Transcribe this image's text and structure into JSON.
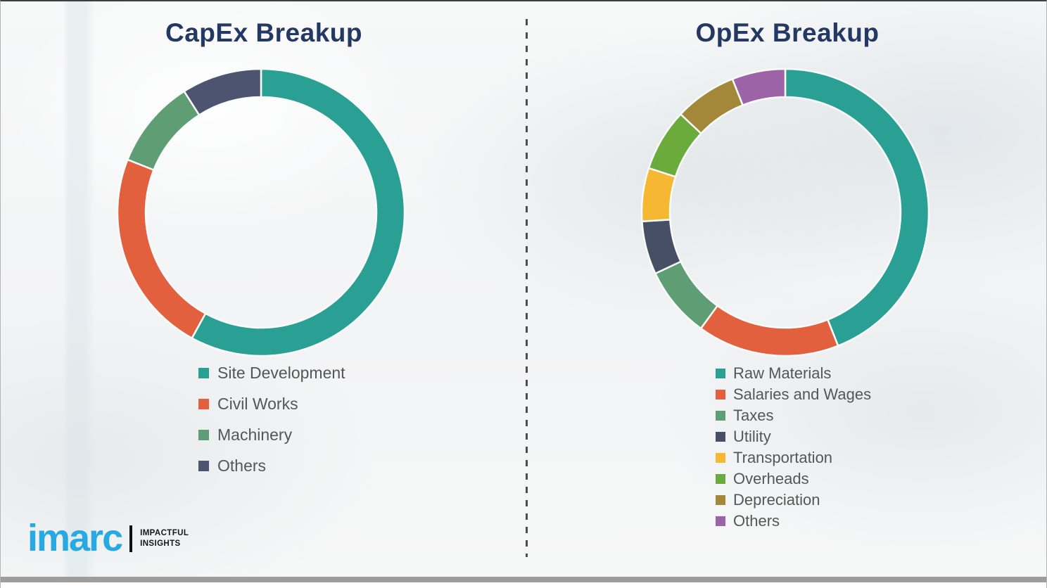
{
  "brand": {
    "logo_text": "imarc",
    "tagline_line1": "IMPACTFUL",
    "tagline_line2": "INSIGHTS",
    "logo_color": "#29a9e1",
    "tagline_color": "#161616"
  },
  "titles_color": "#233863",
  "legend_text_color": "#565656",
  "chart_data": [
    {
      "type": "pie",
      "variant": "donut",
      "title": "CapEx Breakup",
      "legend_position": "below-left",
      "values_are_percent_estimates": true,
      "segments": [
        {
          "label": "Site Development",
          "value": 58,
          "color": "#2aa094"
        },
        {
          "label": "Civil Works",
          "value": 23,
          "color": "#e2603e"
        },
        {
          "label": "Machinery",
          "value": 10,
          "color": "#5f9e75"
        },
        {
          "label": "Others",
          "value": 9,
          "color": "#4d5470"
        }
      ]
    },
    {
      "type": "pie",
      "variant": "donut",
      "title": "OpEx Breakup",
      "legend_position": "below-left",
      "values_are_percent_estimates": true,
      "segments": [
        {
          "label": "Raw Materials",
          "value": 44,
          "color": "#2aa094"
        },
        {
          "label": "Salaries and Wages",
          "value": 16,
          "color": "#e2603e"
        },
        {
          "label": "Taxes",
          "value": 8,
          "color": "#5f9e75"
        },
        {
          "label": "Utility",
          "value": 6,
          "color": "#474f66"
        },
        {
          "label": "Transportation",
          "value": 6,
          "color": "#f6b832"
        },
        {
          "label": "Overheads",
          "value": 7,
          "color": "#6aab3c"
        },
        {
          "label": "Depreciation",
          "value": 7,
          "color": "#a3883a"
        },
        {
          "label": "Others",
          "value": 6,
          "color": "#9c63a6"
        }
      ]
    }
  ]
}
